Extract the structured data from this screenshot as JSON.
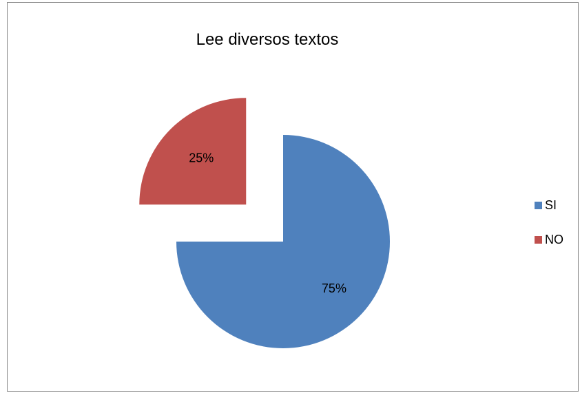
{
  "chart_data": {
    "type": "pie",
    "title": "Lee diversos textos",
    "series": [
      {
        "name": "SI",
        "value": 75,
        "label": "75%",
        "color": "#4f81bd"
      },
      {
        "name": "NO",
        "value": 25,
        "label": "25%",
        "color": "#c0504d"
      }
    ],
    "exploded": [
      "NO"
    ],
    "legend": "right"
  }
}
